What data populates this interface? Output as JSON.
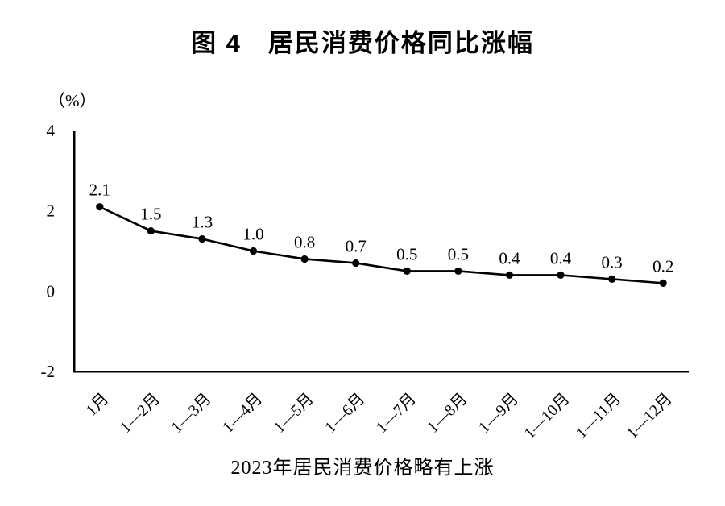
{
  "colors": {
    "foreground": "#000000",
    "background": "#ffffff"
  },
  "chart_data": {
    "type": "line",
    "title": "图 4　居民消费价格同比涨幅",
    "unit_label": "（%）",
    "categories": [
      "1月",
      "1—2月",
      "1—3月",
      "1—4月",
      "1—5月",
      "1—6月",
      "1—7月",
      "1—8月",
      "1—9月",
      "1—10月",
      "1—11月",
      "1—12月"
    ],
    "values": [
      2.1,
      1.5,
      1.3,
      1.0,
      0.8,
      0.7,
      0.5,
      0.5,
      0.4,
      0.4,
      0.3,
      0.2
    ],
    "value_labels": [
      "2.1",
      "1.5",
      "1.3",
      "1.0",
      "0.8",
      "0.7",
      "0.5",
      "0.5",
      "0.4",
      "0.4",
      "0.3",
      "0.2"
    ],
    "ylim": [
      -2,
      4
    ],
    "yticks": [
      4,
      2,
      0,
      -2
    ],
    "grid": false,
    "legend": "none",
    "line_color": "#000000",
    "marker": "filled-circle",
    "caption": "2023年居民消费价格略有上涨"
  }
}
